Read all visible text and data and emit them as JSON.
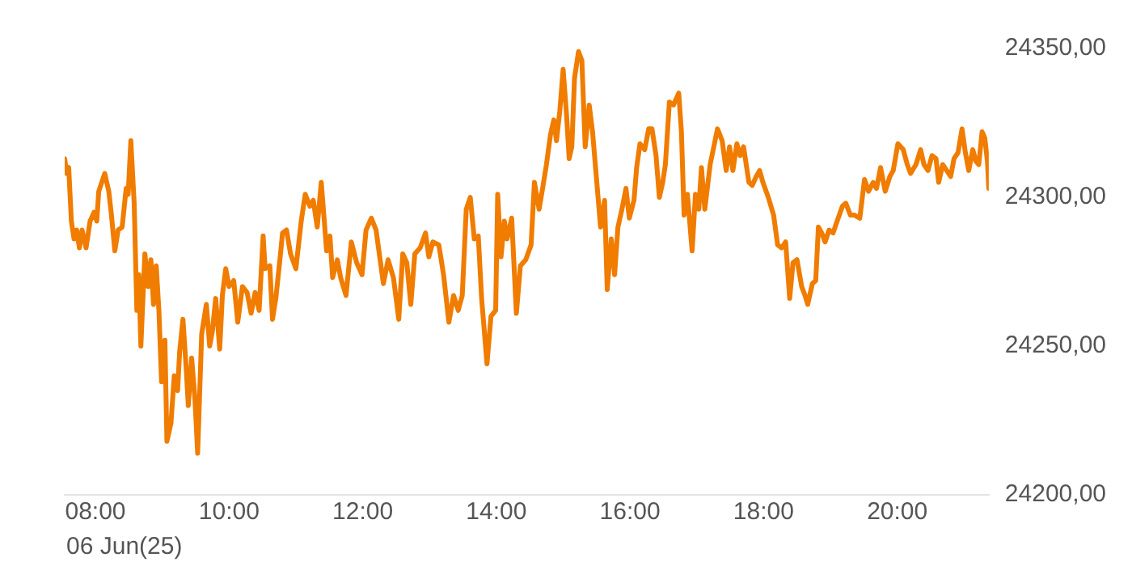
{
  "chart_data": {
    "type": "line",
    "annotations": [
      "06 Jun(25)"
    ],
    "xticks": [
      {
        "value": 8,
        "label": "08:00"
      },
      {
        "value": 10,
        "label": "10:00"
      },
      {
        "value": 12,
        "label": "12:00"
      },
      {
        "value": 14,
        "label": "14:00"
      },
      {
        "value": 16,
        "label": "16:00"
      },
      {
        "value": 18,
        "label": "18:00"
      },
      {
        "value": 20,
        "label": "20:00"
      }
    ],
    "xlim": [
      7.54,
      21.37
    ],
    "ylim": [
      24200,
      24350
    ],
    "yticks": [
      {
        "value": 24200,
        "label": "24200,00"
      },
      {
        "value": 24250,
        "label": "24250,00"
      },
      {
        "value": 24300,
        "label": "24300,00"
      },
      {
        "value": 24350,
        "label": "24350,00"
      }
    ],
    "series": [
      {
        "color": "#f07c00",
        "x": [
          7.54,
          7.57,
          7.6,
          7.64,
          7.68,
          7.72,
          7.76,
          7.8,
          7.86,
          7.92,
          7.98,
          8.02,
          8.05,
          8.14,
          8.2,
          8.24,
          8.29,
          8.34,
          8.4,
          8.46,
          8.49,
          8.53,
          8.58,
          8.62,
          8.65,
          8.68,
          8.74,
          8.79,
          8.83,
          8.87,
          8.91,
          8.95,
          8.99,
          9.04,
          9.07,
          9.13,
          9.18,
          9.23,
          9.26,
          9.31,
          9.36,
          9.39,
          9.44,
          9.49,
          9.53,
          9.59,
          9.66,
          9.71,
          9.75,
          9.8,
          9.86,
          9.9,
          9.95,
          10,
          10.07,
          10.13,
          10.2,
          10.27,
          10.33,
          10.39,
          10.45,
          10.51,
          10.54,
          10.61,
          10.65,
          10.7,
          10.77,
          10.8,
          10.86,
          10.92,
          11,
          11.08,
          11.14,
          11.21,
          11.26,
          11.32,
          11.38,
          11.46,
          11.51,
          11.55,
          11.62,
          11.67,
          11.75,
          11.83,
          11.91,
          11.99,
          12.05,
          12.13,
          12.2,
          12.31,
          12.38,
          12.46,
          12.54,
          12.6,
          12.66,
          12.72,
          12.78,
          12.86,
          12.94,
          12.99,
          13.05,
          13.14,
          13.21,
          13.29,
          13.36,
          13.43,
          13.49,
          13.55,
          13.61,
          13.67,
          13.73,
          13.78,
          13.86,
          13.92,
          13.99,
          14.02,
          14.07,
          14.12,
          14.16,
          14.23,
          14.3,
          14.36,
          14.44,
          14.52,
          14.57,
          14.64,
          14.7,
          14.75,
          14.81,
          14.86,
          14.9,
          14.95,
          15,
          15.05,
          15.09,
          15.13,
          15.17,
          15.23,
          15.28,
          15.33,
          15.39,
          15.44,
          15.5,
          15.56,
          15.62,
          15.66,
          15.72,
          15.77,
          15.82,
          15.88,
          15.94,
          15.99,
          16.06,
          16.1,
          16.15,
          16.22,
          16.28,
          16.33,
          16.39,
          16.44,
          16.49,
          16.53,
          16.59,
          16.65,
          16.73,
          16.77,
          16.81,
          16.86,
          16.93,
          16.98,
          17.03,
          17.07,
          17.12,
          17.2,
          17.31,
          17.38,
          17.44,
          17.49,
          17.54,
          17.6,
          17.65,
          17.7,
          17.78,
          17.83,
          17.89,
          17.94,
          17.99,
          18.07,
          18.15,
          18.21,
          18.27,
          18.33,
          18.39,
          18.44,
          18.5,
          18.57,
          18.62,
          18.66,
          18.73,
          18.78,
          18.82,
          18.87,
          18.92,
          18.98,
          19.04,
          19.1,
          19.18,
          19.23,
          19.3,
          19.36,
          19.44,
          19.51,
          19.57,
          19.64,
          19.69,
          19.75,
          19.82,
          19.89,
          19.94,
          20.01,
          20.09,
          20.15,
          20.2,
          20.28,
          20.35,
          20.4,
          20.46,
          20.52,
          20.58,
          20.62,
          20.68,
          20.74,
          20.8,
          20.85,
          20.91,
          20.97,
          21.02,
          21.07,
          21.13,
          21.18,
          21.22,
          21.27,
          21.31,
          21.35,
          21.37
        ],
        "values": [
          24313,
          24308,
          24310,
          24292,
          24286,
          24289,
          24283,
          24289,
          24283,
          24292,
          24295,
          24292,
          24302,
          24308,
          24302,
          24294,
          24282,
          24289,
          24290,
          24303,
          24301,
          24319,
          24298,
          24262,
          24274,
          24250,
          24281,
          24270,
          24279,
          24264,
          24277,
          24262,
          24238,
          24252,
          24218,
          24224,
          24240,
          24235,
          24248,
          24259,
          24242,
          24230,
          24246,
          24232,
          24214,
          24254,
          24264,
          24250,
          24255,
          24266,
          24249,
          24267,
          24276,
          24270,
          24272,
          24258,
          24270,
          24268,
          24261,
          24268,
          24262,
          24287,
          24276,
          24277,
          24259,
          24266,
          24281,
          24288,
          24289,
          24281,
          24276,
          24292,
          24301,
          24297,
          24299,
          24290,
          24305,
          24282,
          24287,
          24273,
          24279,
          24273,
          24267,
          24285,
          24278,
          24274,
          24289,
          24293,
          24289,
          24271,
          24279,
          24273,
          24259,
          24281,
          24278,
          24264,
          24281,
          24283,
          24288,
          24280,
          24285,
          24284,
          24274,
          24258,
          24267,
          24262,
          24267,
          24296,
          24300,
          24286,
          24287,
          24266,
          24244,
          24260,
          24262,
          24301,
          24280,
          24292,
          24286,
          24293,
          24261,
          24277,
          24279,
          24284,
          24305,
          24296,
          24304,
          24311,
          24321,
          24326,
          24319,
          24329,
          24343,
          24328,
          24313,
          24317,
          24340,
          24349,
          24346,
          24317,
          24331,
          24322,
          24306,
          24290,
          24299,
          24269,
          24286,
          24274,
          24290,
          24296,
          24303,
          24293,
          24299,
          24310,
          24318,
          24316,
          24323,
          24323,
          24314,
          24300,
          24305,
          24311,
          24332,
          24331,
          24335,
          24322,
          24294,
          24301,
          24282,
          24301,
          24296,
          24310,
          24296,
          24311,
          24323,
          24319,
          24309,
          24317,
          24309,
          24318,
          24314,
          24317,
          24305,
          24304,
          24307,
          24309,
          24305,
          24300,
          24294,
          24284,
          24283,
          24285,
          24266,
          24278,
          24279,
          24270,
          24267,
          24264,
          24271,
          24272,
          24290,
          24288,
          24285,
          24289,
          24288,
          24292,
          24297,
          24298,
          24294,
          24294,
          24293,
          24306,
          24302,
          24305,
          24303,
          24310,
          24302,
          24307,
          24309,
          24318,
          24316,
          24311,
          24308,
          24311,
          24316,
          24311,
          24309,
          24314,
          24313,
          24305,
          24311,
          24309,
          24307,
          24313,
          24315,
          24323,
          24315,
          24309,
          24316,
          24312,
          24311,
          24322,
          24320,
          24312,
          24303
        ]
      }
    ]
  }
}
